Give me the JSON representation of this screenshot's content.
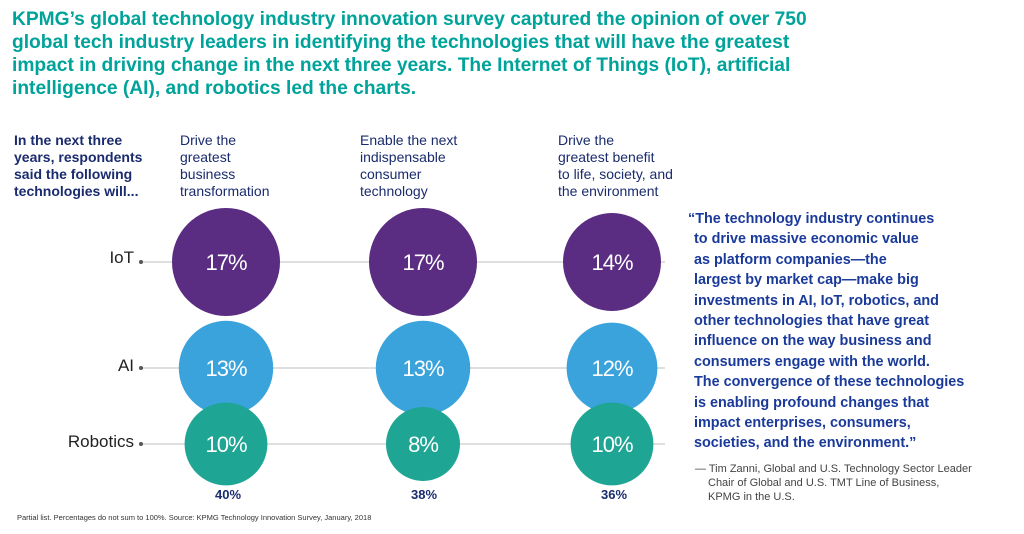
{
  "headline": {
    "lines": [
      "KPMG’s global technology industry innovation survey captured the opinion of over 750",
      "global tech industry leaders in identifying the technologies that will have the greatest",
      "impact in driving change in the next three years. The Internet of Things (IoT), artificial",
      "intelligence (AI), and robotics led the charts."
    ]
  },
  "lead": {
    "lines": [
      "In the next three",
      "years, respondents",
      "said the following",
      "technologies will..."
    ]
  },
  "colors": {
    "IoT": "#5a2d82",
    "AI": "#3aa3dc",
    "Robotics": "#1fa594",
    "line": "#cccccc"
  },
  "chart_data": {
    "type": "bubble",
    "title": "",
    "categories": [
      [
        "Drive the",
        "greatest",
        "business",
        "transformation"
      ],
      [
        "Enable the next",
        "indispensable",
        "consumer",
        "technology"
      ],
      [
        "Drive the",
        "greatest benefit",
        "to life, society, and",
        "the environment"
      ]
    ],
    "rows": [
      "IoT",
      "AI",
      "Robotics"
    ],
    "series": [
      {
        "name": "IoT",
        "values": [
          17,
          17,
          14
        ],
        "labels": [
          "17%",
          "17%",
          "14%"
        ]
      },
      {
        "name": "AI",
        "values": [
          13,
          13,
          12
        ],
        "labels": [
          "13%",
          "13%",
          "12%"
        ]
      },
      {
        "name": "Robotics",
        "values": [
          10,
          8,
          10
        ],
        "labels": [
          "10%",
          "8%",
          "10%"
        ]
      }
    ],
    "totals": [
      "40%",
      "38%",
      "36%"
    ]
  },
  "quote": {
    "lines": [
      "“The technology industry continues",
      "to drive massive economic value",
      "as platform companies—the",
      "largest by market cap—make big",
      "investments in AI, IoT, robotics, and",
      "other technologies that have great",
      "influence on the way business and",
      "consumers engage with the world.",
      "The convergence of these technologies",
      "is enabling profound changes that",
      "impact enterprises, consumers,",
      "societies, and the environment.”"
    ]
  },
  "attribution": {
    "lines": [
      "— Tim Zanni, Global and U.S. Technology Sector Leader",
      "Chair of Global and U.S. TMT Line of Business,",
      "KPMG in the U.S."
    ]
  },
  "footnote": "Partial list. Percentages do not sum to 100%. Source: KPMG Technology Innovation Survey, January, 2018"
}
